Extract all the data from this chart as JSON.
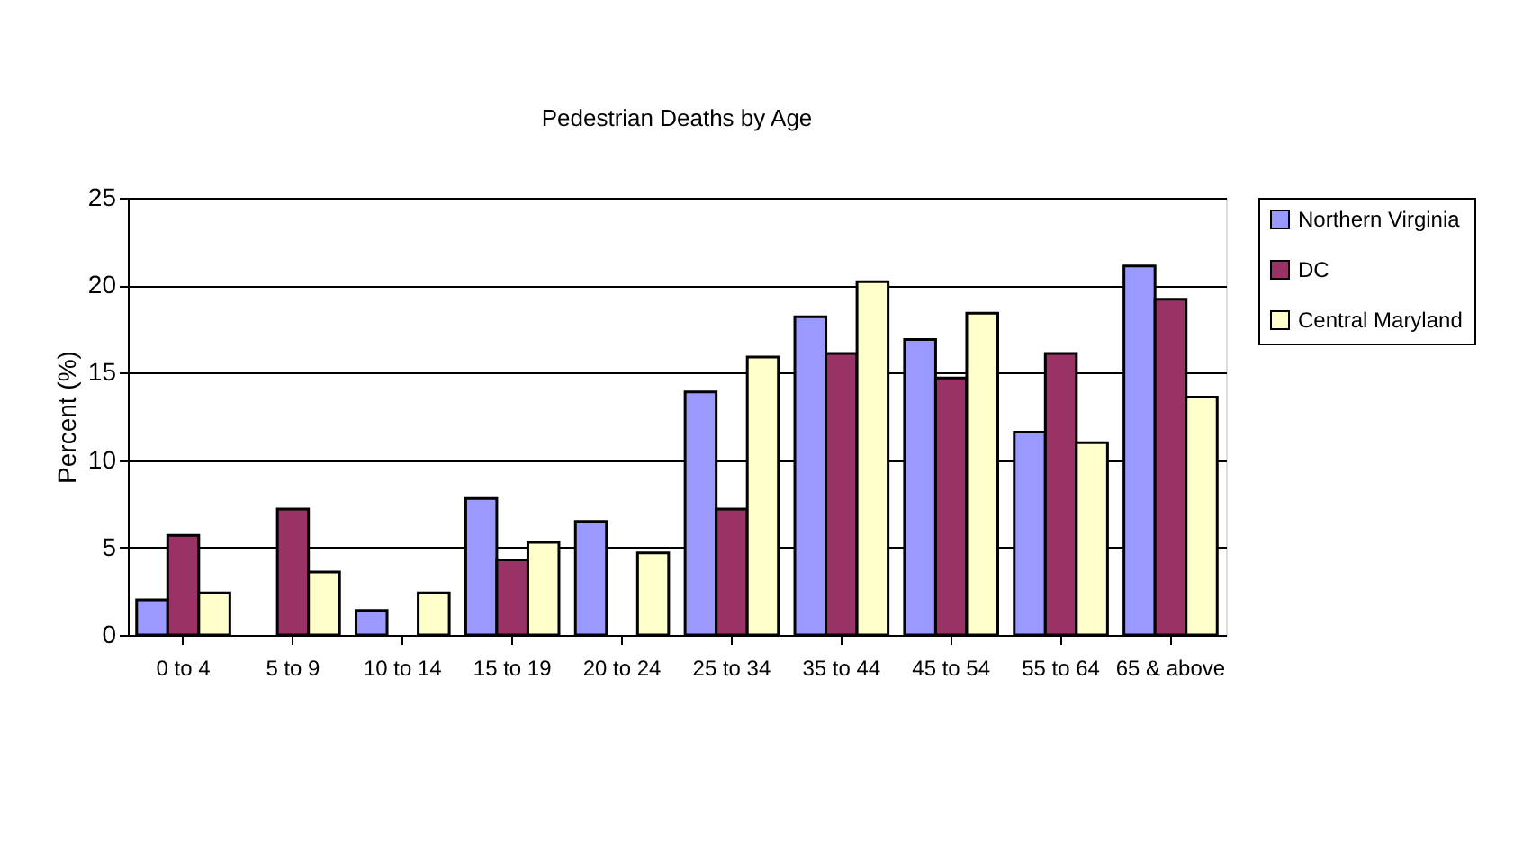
{
  "chart_data": {
    "type": "bar",
    "title": "Pedestrian Deaths by Age",
    "ylabel": "Percent (%)",
    "categories": [
      "0 to 4",
      "5 to 9",
      "10 to 14",
      "15 to 19",
      "20 to 24",
      "25 to 34",
      "35 to 44",
      "45 to 54",
      "55 to 64",
      "65 & above"
    ],
    "series": [
      {
        "name": "Northern Virginia",
        "color": "#9999ff",
        "values": [
          2.0,
          null,
          1.4,
          7.8,
          6.5,
          13.9,
          18.2,
          16.9,
          11.6,
          21.1
        ]
      },
      {
        "name": "DC",
        "color": "#993366",
        "values": [
          5.7,
          7.2,
          null,
          4.3,
          null,
          7.2,
          16.1,
          14.7,
          16.1,
          19.2
        ]
      },
      {
        "name": "Central Maryland",
        "color": "#ffffcc",
        "values": [
          2.4,
          3.6,
          2.4,
          5.3,
          4.7,
          15.9,
          20.2,
          18.4,
          11.0,
          13.6
        ]
      }
    ],
    "ylim": [
      0,
      25
    ],
    "yticks": [
      0,
      5,
      10,
      15,
      20,
      25
    ],
    "grid": "y",
    "legend": "right"
  }
}
